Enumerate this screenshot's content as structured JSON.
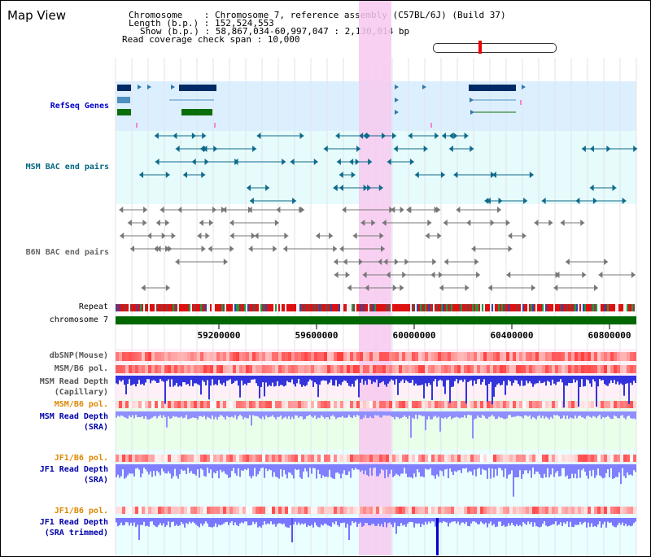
{
  "header": {
    "title": "Map View",
    "chromosome_line": "Chromosome    : Chromosome 7, reference assembly (C57BL/6J) (Build 37)",
    "length_line": "Length (b.p.) : 152,524,553",
    "show_line": "Show (b.p.) : 58,867,034-60,997,047 : 2,130,014 bp",
    "coverage_line": "Read coverage check span : 10,000"
  },
  "tracks": {
    "refseq": "RefSeq Genes",
    "msm_bac": "MSM BAC end pairs",
    "b6n_bac": "B6N BAC end pairs",
    "repeat": "Repeat",
    "chromosome": "chromosome 7",
    "dbsnp": "dbSNP(Mouse)",
    "msm_b6_pol_1": "MSM/B6 pol.",
    "msm_read_depth_cap_1": "MSM Read Depth",
    "msm_read_depth_cap_2": "(Capillary)",
    "msm_b6_pol_2": "MSM/B6 pol.",
    "msm_read_depth_sra_1": "MSM Read Depth",
    "msm_read_depth_sra_2": "(SRA)",
    "jf1_b6_pol": "JF1/B6 pol.",
    "jf1_read_depth_sra_1": "JF1 Read Depth",
    "jf1_read_depth_sra_2": "(SRA)",
    "jf1_b6_pol_2": "JF1/B6 pol.",
    "jf1_read_depth_trim_1": "JF1 Read Depth",
    "jf1_read_depth_trim_2": "(SRA trimmed)"
  },
  "axis": {
    "ticks": [
      "59200000",
      "59600000",
      "60000000",
      "60400000",
      "60800000"
    ]
  },
  "colors": {
    "refseq_label": "#0000cc",
    "msm_bac_label": "#006680",
    "b6n_bac_label": "#666666",
    "orange_label": "#dd8800",
    "blue_label": "#0000aa",
    "highlight": "#f5c8ee",
    "chromosome_bar": "#006600",
    "depth_blue": "#5555ee",
    "depth_light": "#8888ff"
  }
}
